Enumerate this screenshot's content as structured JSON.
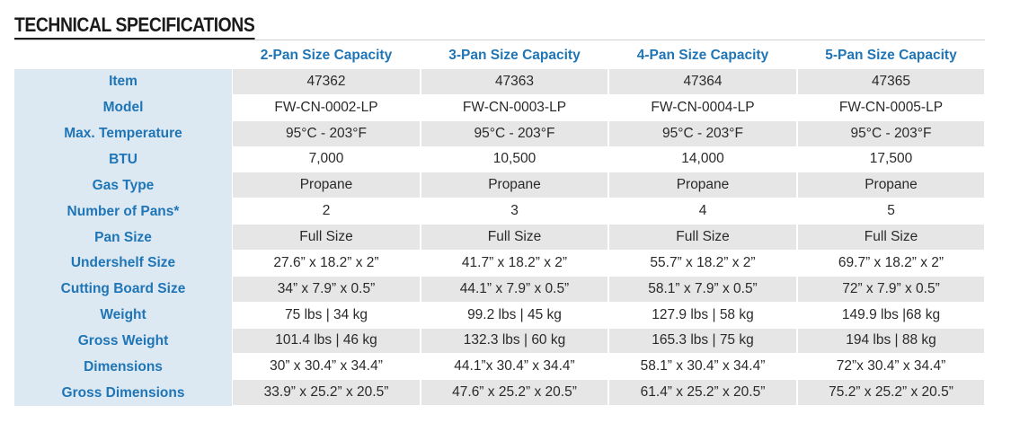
{
  "title": "TECHNICAL SPECIFICATIONS",
  "table": {
    "columns": [
      "2-Pan Size Capacity",
      "3-Pan Size Capacity",
      "4-Pan Size Capacity",
      "5-Pan Size Capacity"
    ],
    "rows": [
      [
        "Item",
        "47362",
        "47363",
        "47364",
        "47365"
      ],
      [
        "Model",
        "FW-CN-0002-LP",
        "FW-CN-0003-LP",
        "FW-CN-0004-LP",
        "FW-CN-0005-LP"
      ],
      [
        "Max. Temperature",
        "95°C - 203°F",
        "95°C - 203°F",
        "95°C - 203°F",
        "95°C - 203°F"
      ],
      [
        "BTU",
        "7,000",
        "10,500",
        "14,000",
        "17,500"
      ],
      [
        "Gas Type",
        "Propane",
        "Propane",
        "Propane",
        "Propane"
      ],
      [
        "Number of Pans*",
        "2",
        "3",
        "4",
        "5"
      ],
      [
        "Pan Size",
        "Full Size",
        "Full Size",
        "Full Size",
        "Full Size"
      ],
      [
        "Undershelf Size",
        "27.6” x 18.2” x 2”",
        "41.7” x 18.2” x 2”",
        "55.7” x 18.2” x 2”",
        "69.7” x 18.2” x 2”"
      ],
      [
        "Cutting Board Size",
        "34” x 7.9” x 0.5”",
        "44.1” x 7.9” x 0.5”",
        "58.1” x 7.9” x 0.5”",
        "72” x 7.9” x 0.5”"
      ],
      [
        "Weight",
        "75 lbs | 34 kg",
        "99.2 lbs | 45 kg",
        "127.9 lbs | 58 kg",
        "149.9 lbs |68 kg"
      ],
      [
        "Gross Weight",
        "101.4 lbs | 46 kg",
        "132.3 lbs | 60 kg",
        "165.3 lbs | 75 kg",
        "194 lbs | 88 kg"
      ],
      [
        "Dimensions",
        "30” x 30.4” x 34.4”",
        "44.1”x 30.4” x 34.4”",
        "58.1” x 30.4” x 34.4”",
        "72”x 30.4” x 34.4”"
      ],
      [
        "Gross Dimensions",
        "33.9” x 25.2” x 20.5”",
        "47.6” x 25.2” x 20.5”",
        "61.4” x 25.2” x 20.5”",
        "75.2” x 25.2” x 20.5”"
      ]
    ]
  }
}
